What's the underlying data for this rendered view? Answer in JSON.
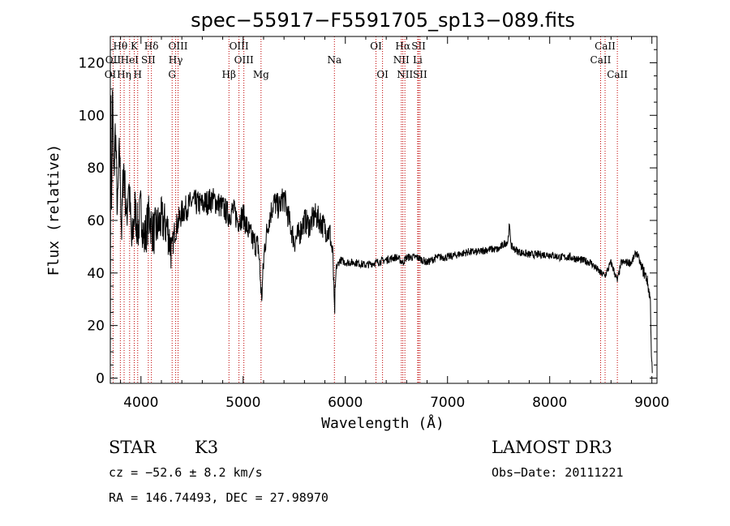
{
  "chart_data": {
    "type": "line",
    "title": "spec−55917−F5591705_sp13−089.fits",
    "xlabel": "Wavelength (Å)",
    "ylabel": "Flux (relative)",
    "xlim": [
      3700,
      9050
    ],
    "ylim": [
      -2,
      130
    ],
    "xticks": [
      4000,
      5000,
      6000,
      7000,
      8000,
      9000
    ],
    "yticks": [
      0,
      20,
      40,
      60,
      80,
      100,
      120
    ],
    "series": [
      {
        "name": "spectrum",
        "anchors": [
          [
            3700,
            0
          ],
          [
            3705,
            120
          ],
          [
            3712,
            60
          ],
          [
            3722,
            110
          ],
          [
            3734,
            75
          ],
          [
            3750,
            96
          ],
          [
            3770,
            62
          ],
          [
            3790,
            88
          ],
          [
            3810,
            55
          ],
          [
            3830,
            82
          ],
          [
            3860,
            60
          ],
          [
            3880,
            76
          ],
          [
            3910,
            50
          ],
          [
            3940,
            65
          ],
          [
            3970,
            56
          ],
          [
            4000,
            65
          ],
          [
            4030,
            52
          ],
          [
            4080,
            62
          ],
          [
            4120,
            55
          ],
          [
            4200,
            60
          ],
          [
            4260,
            57
          ],
          [
            4300,
            48
          ],
          [
            4330,
            56
          ],
          [
            4400,
            63
          ],
          [
            4500,
            67
          ],
          [
            4600,
            66
          ],
          [
            4700,
            68
          ],
          [
            4800,
            65
          ],
          [
            4860,
            62
          ],
          [
            4900,
            64
          ],
          [
            4950,
            60
          ],
          [
            5000,
            62
          ],
          [
            5050,
            56
          ],
          [
            5100,
            52
          ],
          [
            5150,
            50
          ],
          [
            5180,
            30
          ],
          [
            5210,
            50
          ],
          [
            5250,
            60
          ],
          [
            5300,
            67
          ],
          [
            5350,
            65
          ],
          [
            5400,
            69
          ],
          [
            5450,
            60
          ],
          [
            5500,
            52
          ],
          [
            5550,
            55
          ],
          [
            5600,
            60
          ],
          [
            5650,
            58
          ],
          [
            5700,
            62
          ],
          [
            5750,
            60
          ],
          [
            5800,
            57
          ],
          [
            5850,
            55
          ],
          [
            5880,
            45
          ],
          [
            5893,
            24
          ],
          [
            5910,
            42
          ],
          [
            5950,
            45
          ],
          [
            6000,
            44
          ],
          [
            6100,
            44
          ],
          [
            6200,
            43
          ],
          [
            6300,
            44
          ],
          [
            6400,
            45
          ],
          [
            6500,
            46
          ],
          [
            6563,
            44
          ],
          [
            6600,
            46
          ],
          [
            6700,
            46
          ],
          [
            6800,
            44
          ],
          [
            6900,
            46
          ],
          [
            7000,
            46
          ],
          [
            7100,
            47
          ],
          [
            7200,
            48
          ],
          [
            7300,
            48
          ],
          [
            7400,
            49
          ],
          [
            7500,
            49
          ],
          [
            7550,
            51
          ],
          [
            7590,
            52
          ],
          [
            7605,
            58
          ],
          [
            7625,
            50
          ],
          [
            7700,
            48
          ],
          [
            7800,
            47
          ],
          [
            7900,
            47
          ],
          [
            8000,
            47
          ],
          [
            8100,
            46
          ],
          [
            8200,
            46
          ],
          [
            8300,
            45
          ],
          [
            8400,
            44
          ],
          [
            8498,
            40
          ],
          [
            8542,
            39
          ],
          [
            8600,
            44
          ],
          [
            8662,
            37
          ],
          [
            8700,
            44
          ],
          [
            8800,
            44
          ],
          [
            8850,
            48
          ],
          [
            8900,
            42
          ],
          [
            8950,
            38
          ],
          [
            8985,
            30
          ],
          [
            8995,
            10
          ],
          [
            9005,
            0
          ]
        ]
      }
    ],
    "lines": [
      {
        "name": "Hθ",
        "wl": 3798,
        "row": 1
      },
      {
        "name": "K",
        "wl": 3934,
        "row": 1
      },
      {
        "name": "Hδ",
        "wl": 4102,
        "row": 1
      },
      {
        "name": "OIII",
        "wl": 4363,
        "row": 1
      },
      {
        "name": "OIII",
        "wl": 4959,
        "row": 1
      },
      {
        "name": "OI",
        "wl": 6300,
        "row": 1
      },
      {
        "name": "Hα",
        "wl": 6563,
        "row": 1
      },
      {
        "name": "SII",
        "wl": 6717,
        "row": 1
      },
      {
        "name": "CaII",
        "wl": 8542,
        "row": 1
      },
      {
        "name": "OII",
        "wl": 3727,
        "row": 2
      },
      {
        "name": "HeI",
        "wl": 3889,
        "row": 2
      },
      {
        "name": "SII",
        "wl": 4072,
        "row": 2
      },
      {
        "name": "Hγ",
        "wl": 4340,
        "row": 2
      },
      {
        "name": "OIII",
        "wl": 5007,
        "row": 2
      },
      {
        "name": "Na",
        "wl": 5893,
        "row": 2
      },
      {
        "name": "NII",
        "wl": 6548,
        "row": 2
      },
      {
        "name": "Li",
        "wl": 6708,
        "row": 2
      },
      {
        "name": "CaII",
        "wl": 8498,
        "row": 2
      },
      {
        "name": "OI",
        "wl": 3700,
        "row": 3
      },
      {
        "name": "Hη",
        "wl": 3835,
        "row": 3
      },
      {
        "name": "H",
        "wl": 3968,
        "row": 3
      },
      {
        "name": "G",
        "wl": 4305,
        "row": 3
      },
      {
        "name": "Hβ",
        "wl": 4861,
        "row": 3
      },
      {
        "name": "Mg",
        "wl": 5175,
        "row": 3
      },
      {
        "name": "OI",
        "wl": 6364,
        "row": 3
      },
      {
        "name": "NII",
        "wl": 6583,
        "row": 3
      },
      {
        "name": "SII",
        "wl": 6731,
        "row": 3
      },
      {
        "name": "CaII",
        "wl": 8662,
        "row": 3
      }
    ]
  },
  "info": {
    "class": "STAR",
    "subclass": "K3",
    "survey": "LAMOST DR3",
    "cz": "cz = −52.6 ± 8.2 km/s",
    "obsdate": "Obs−Date: 20111221",
    "radec": "RA = 146.74493, DEC =  27.98970"
  },
  "colors": {
    "spectrum": "#000000",
    "lines": "#c00000"
  }
}
